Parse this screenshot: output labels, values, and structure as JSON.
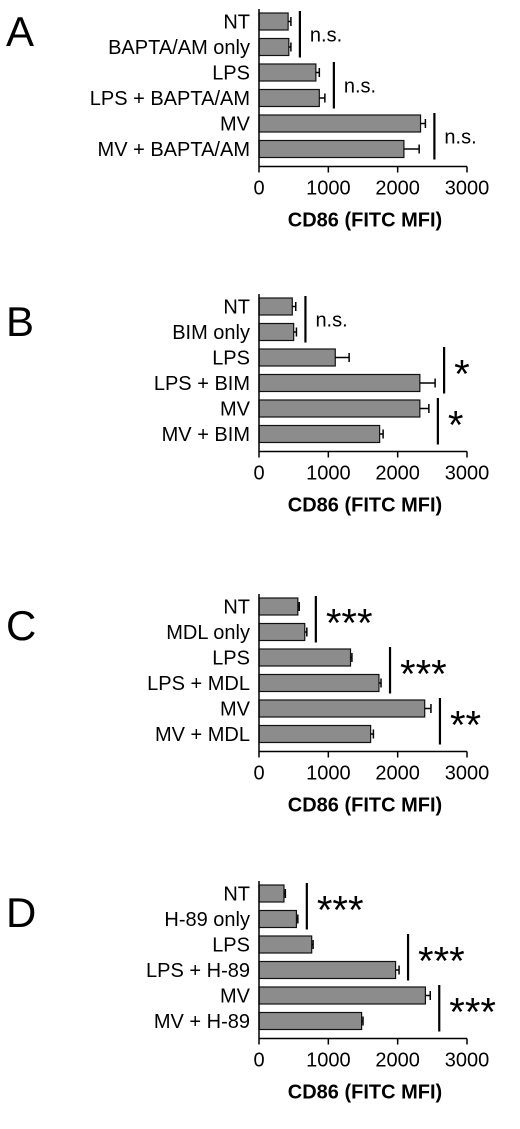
{
  "chart_data": [
    {
      "type": "bar",
      "orientation": "horizontal",
      "panel": "A",
      "categories": [
        "NT",
        "BAPTA/AM only",
        "LPS",
        "LPS + BAPTA/AM",
        "MV",
        "MV + BAPTA/AM"
      ],
      "values": [
        420,
        430,
        820,
        870,
        2330,
        2090
      ],
      "errors": [
        40,
        30,
        50,
        80,
        70,
        220
      ],
      "significance": [
        {
          "pair": [
            0,
            1
          ],
          "label": "n.s."
        },
        {
          "pair": [
            2,
            3
          ],
          "label": "n.s."
        },
        {
          "pair": [
            4,
            5
          ],
          "label": "n.s."
        }
      ],
      "xlabel": "CD86 (FITC MFI)",
      "xlim": [
        0,
        3000
      ],
      "xticks": [
        "0",
        "1000",
        "2000",
        "3000"
      ],
      "grid": false
    },
    {
      "type": "bar",
      "orientation": "horizontal",
      "panel": "B",
      "categories": [
        "NT",
        "BIM only",
        "LPS",
        "LPS + BIM",
        "MV",
        "MV + BIM"
      ],
      "values": [
        480,
        500,
        1100,
        2320,
        2320,
        1740
      ],
      "errors": [
        50,
        40,
        200,
        220,
        130,
        50
      ],
      "significance": [
        {
          "pair": [
            0,
            1
          ],
          "label": "n.s."
        },
        {
          "pair": [
            2,
            3
          ],
          "label": "*"
        },
        {
          "pair": [
            4,
            5
          ],
          "label": "*"
        }
      ],
      "xlabel": "CD86 (FITC MFI)",
      "xlim": [
        0,
        3000
      ],
      "xticks": [
        "0",
        "1000",
        "2000",
        "3000"
      ],
      "grid": false
    },
    {
      "type": "bar",
      "orientation": "horizontal",
      "panel": "C",
      "categories": [
        "NT",
        "MDL only",
        "LPS",
        "LPS + MDL",
        "MV",
        "MV + MDL"
      ],
      "values": [
        560,
        660,
        1320,
        1730,
        2390,
        1610
      ],
      "errors": [
        20,
        30,
        20,
        30,
        90,
        40
      ],
      "significance": [
        {
          "pair": [
            0,
            1
          ],
          "label": "***"
        },
        {
          "pair": [
            2,
            3
          ],
          "label": "***"
        },
        {
          "pair": [
            4,
            5
          ],
          "label": "**"
        }
      ],
      "xlabel": "CD86 (FITC MFI)",
      "xlim": [
        0,
        3000
      ],
      "xticks": [
        "0",
        "1000",
        "2000",
        "3000"
      ],
      "grid": false
    },
    {
      "type": "bar",
      "orientation": "horizontal",
      "panel": "D",
      "categories": [
        "NT",
        "H-89 only",
        "LPS",
        "LPS + H-89",
        "MV",
        "MV + H-89"
      ],
      "values": [
        360,
        540,
        760,
        1970,
        2400,
        1480
      ],
      "errors": [
        20,
        20,
        20,
        50,
        70,
        20
      ],
      "significance": [
        {
          "pair": [
            0,
            1
          ],
          "label": "***"
        },
        {
          "pair": [
            2,
            3
          ],
          "label": "***"
        },
        {
          "pair": [
            4,
            5
          ],
          "label": "***"
        }
      ],
      "xlabel": "CD86 (FITC MFI)",
      "xlim": [
        0,
        3000
      ],
      "xticks": [
        "0",
        "1000",
        "2000",
        "3000"
      ],
      "grid": false
    }
  ]
}
